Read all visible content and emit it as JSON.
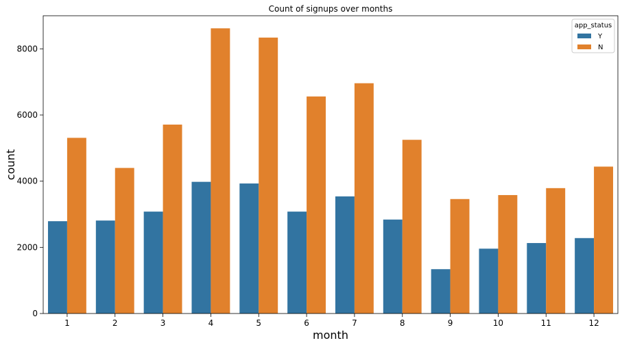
{
  "chart_data": {
    "type": "bar",
    "title": "Count of signups over months",
    "xlabel": "month",
    "ylabel": "count",
    "categories": [
      "1",
      "2",
      "3",
      "4",
      "5",
      "6",
      "7",
      "8",
      "9",
      "10",
      "11",
      "12"
    ],
    "series": [
      {
        "name": "Y",
        "color": "#3274a1",
        "values": [
          2790,
          2810,
          3080,
          3980,
          3930,
          3080,
          3540,
          2840,
          1340,
          1960,
          2130,
          2280
        ]
      },
      {
        "name": "N",
        "color": "#e1812c",
        "values": [
          5310,
          4400,
          5710,
          8620,
          8340,
          6560,
          6960,
          5250,
          3460,
          3580,
          3790,
          4440
        ]
      }
    ],
    "ylim": [
      0,
      9000
    ],
    "yticks": [
      0,
      2000,
      4000,
      6000,
      8000
    ],
    "legend": {
      "title": "app_status",
      "placement": "top-right"
    },
    "grid": false
  }
}
